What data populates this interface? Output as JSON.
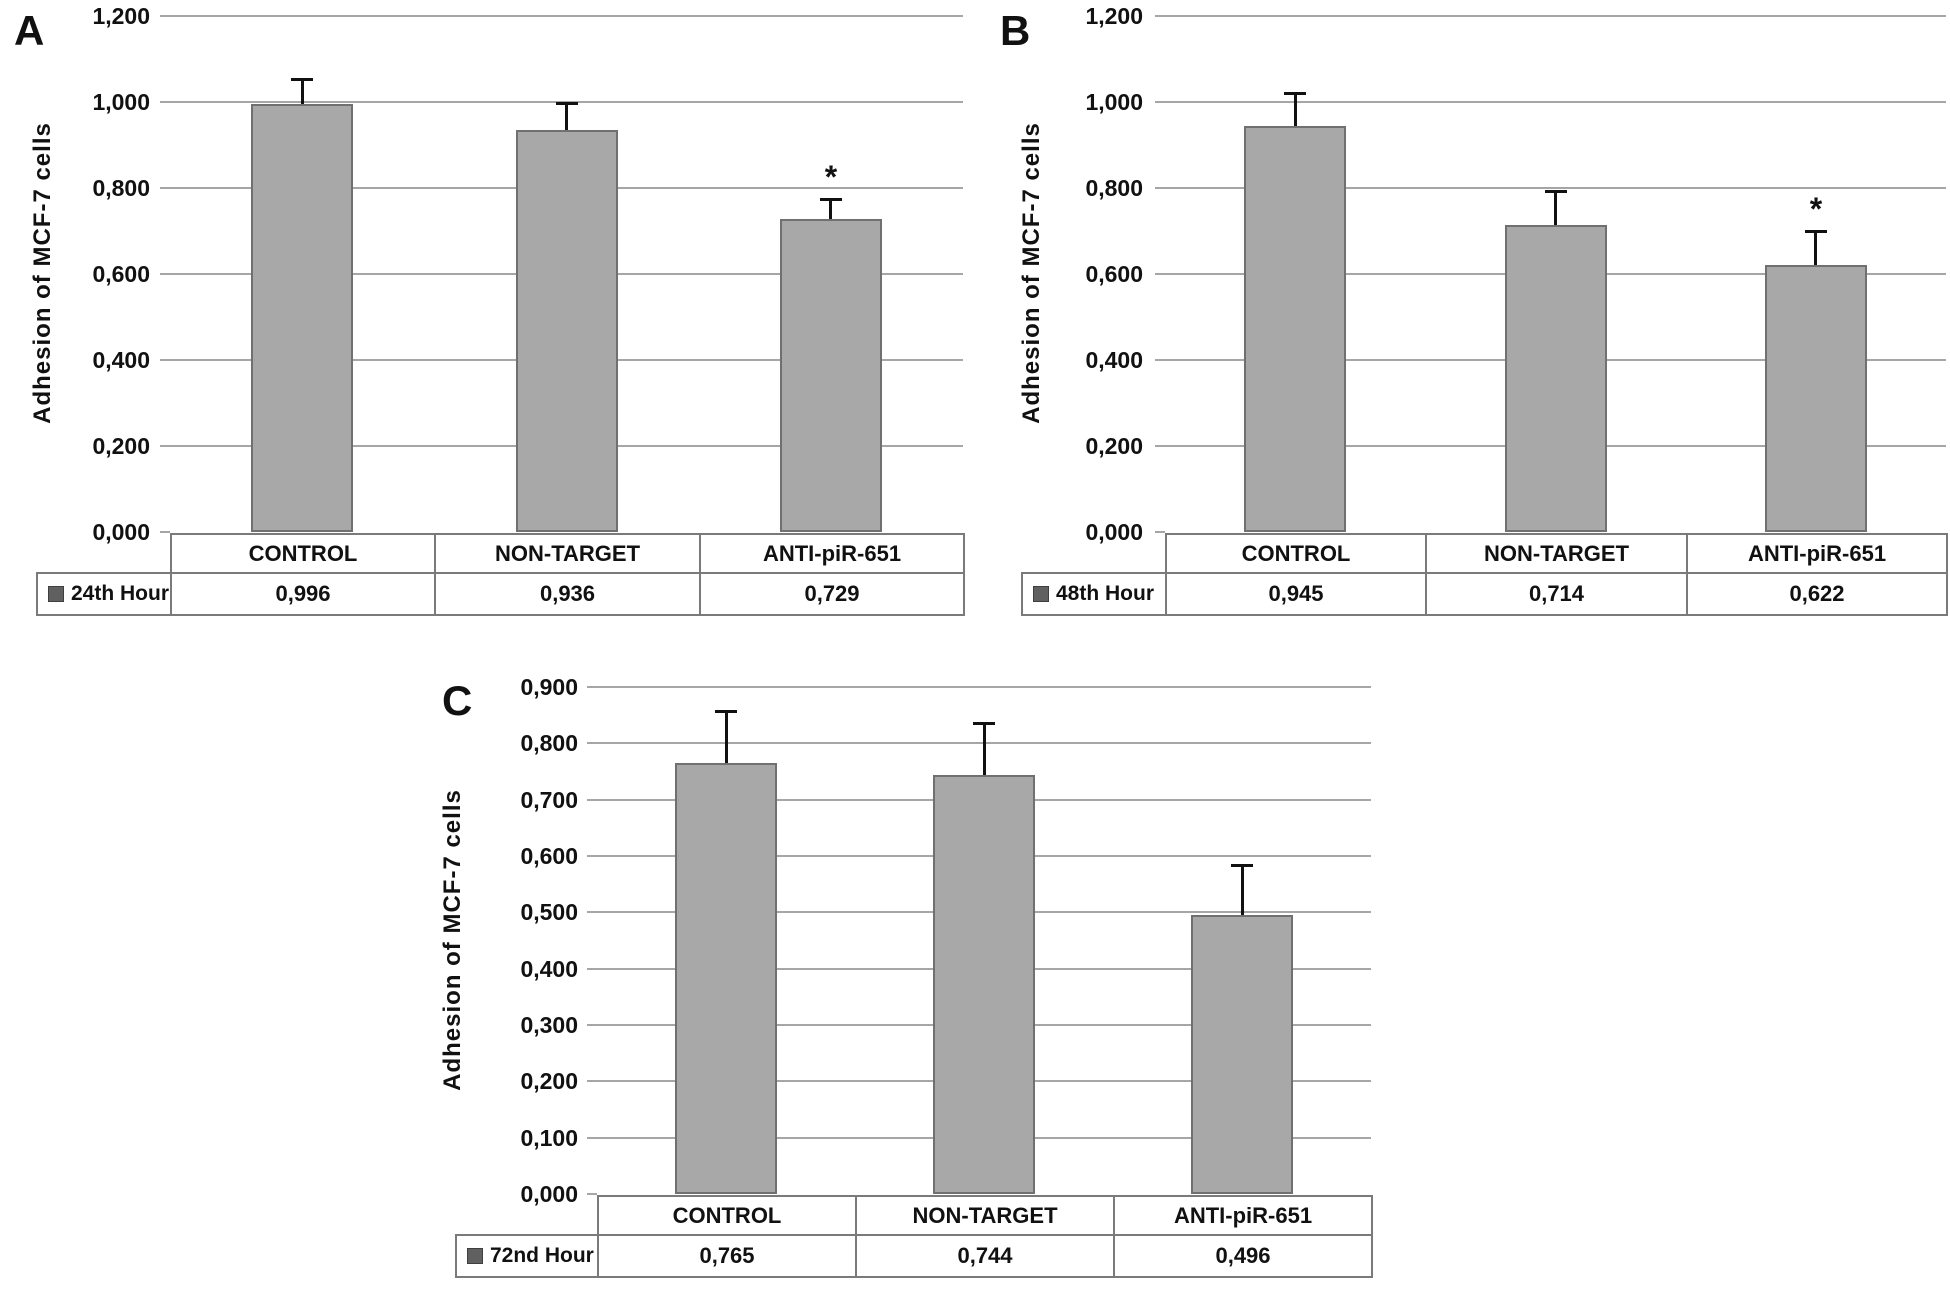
{
  "figure": {
    "background": "#ffffff",
    "description": "Three-panel bar figure: adhesion of MCF-7 cells at 24th, 48th and 72nd hours"
  },
  "colors": {
    "bar_fill": "#a8a8a8",
    "bar_border": "#707070",
    "gridline": "#a6a6a6",
    "table_border": "#7a7a7a",
    "error_bar": "#111111",
    "text": "#111111",
    "legend_marker_fill": "#606060",
    "legend_marker_border": "#3f3f3f"
  },
  "chart_data": [
    {
      "panel": "A",
      "type": "bar",
      "title": "",
      "ylabel": "Adhesion of MCF-7 cells",
      "xlabel": "",
      "legend": "24th Hour",
      "legend_position": "bottom-left table cell",
      "grid": true,
      "categories": [
        "CONTROL",
        "NON-TARGET",
        "ANTI-piR-651"
      ],
      "values": [
        0.996,
        0.936,
        0.729
      ],
      "value_labels": [
        "0,996",
        "0,936",
        "0,729"
      ],
      "error_tops": [
        1.053,
        0.998,
        0.775
      ],
      "significance": [
        "",
        "",
        "*"
      ],
      "ylim": [
        0,
        1.2
      ],
      "ytick_step": 0.2,
      "yticks": [
        "1,200",
        "1,000",
        "0,800",
        "0,600",
        "0,400",
        "0,200",
        "0,000"
      ]
    },
    {
      "panel": "B",
      "type": "bar",
      "title": "",
      "ylabel": "Adhesion of MCF-7 cells",
      "xlabel": "",
      "legend": "48th Hour",
      "legend_position": "bottom-left table cell",
      "grid": true,
      "categories": [
        "CONTROL",
        "NON-TARGET",
        "ANTI-piR-651"
      ],
      "values": [
        0.945,
        0.714,
        0.622
      ],
      "value_labels": [
        "0,945",
        "0,714",
        "0,622"
      ],
      "error_tops": [
        1.021,
        0.793,
        0.7
      ],
      "significance": [
        "",
        "",
        "*"
      ],
      "ylim": [
        0,
        1.2
      ],
      "ytick_step": 0.2,
      "yticks": [
        "1,200",
        "1,000",
        "0,800",
        "0,600",
        "0,400",
        "0,200",
        "0,000"
      ]
    },
    {
      "panel": "C",
      "type": "bar",
      "title": "",
      "ylabel": "Adhesion of MCF-7 cells",
      "xlabel": "",
      "legend": "72nd Hour",
      "legend_position": "bottom-left table cell",
      "grid": true,
      "categories": [
        "CONTROL",
        "NON-TARGET",
        "ANTI-piR-651"
      ],
      "values": [
        0.765,
        0.744,
        0.496
      ],
      "value_labels": [
        "0,765",
        "0,744",
        "0,496"
      ],
      "error_tops": [
        0.858,
        0.836,
        0.584
      ],
      "significance": [
        "",
        "",
        ""
      ],
      "ylim": [
        0,
        0.9
      ],
      "ytick_step": 0.1,
      "yticks": [
        "0,900",
        "0,800",
        "0,700",
        "0,600",
        "0,500",
        "0,400",
        "0,300",
        "0,200",
        "0,100",
        "0,000"
      ]
    }
  ]
}
